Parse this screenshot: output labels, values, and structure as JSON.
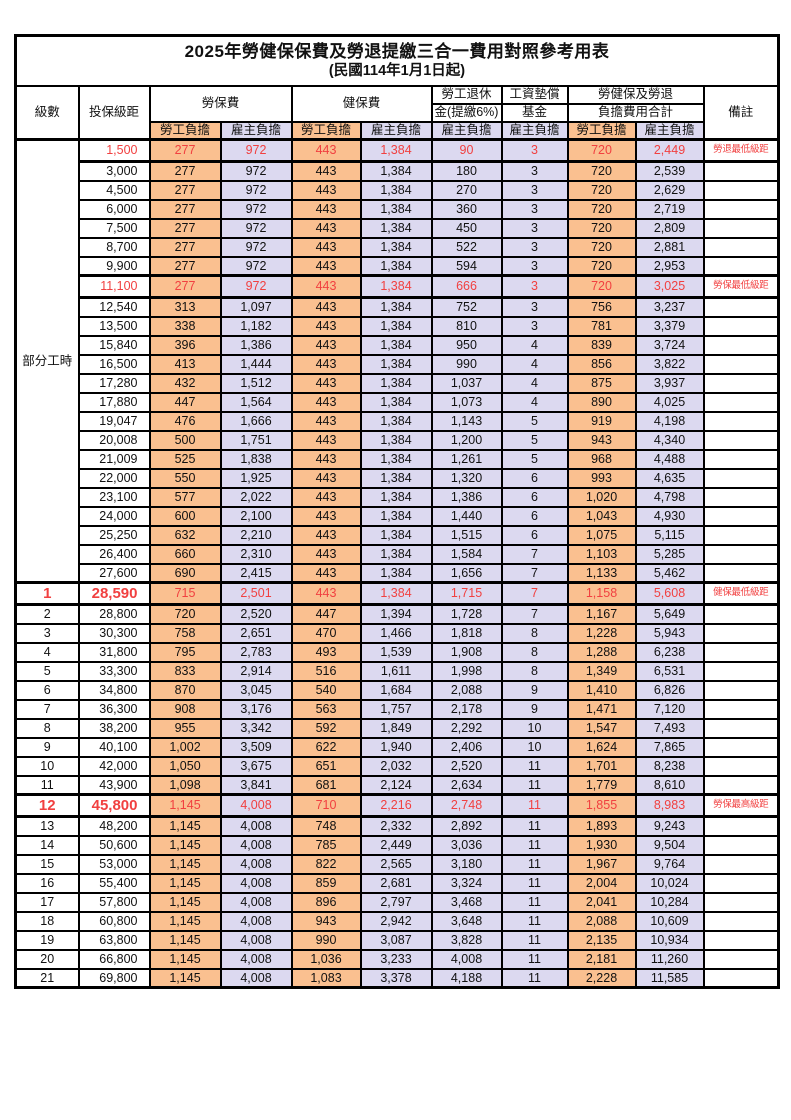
{
  "title": "2025年勞健保保費及勞退提繳三合一費用對照參考用表",
  "subtitle": "(民國114年1月1日起)",
  "colors": {
    "worker_bg": "#FAC090",
    "employer_bg": "#DCD9F0",
    "highlight_red": "#F14040"
  },
  "header": {
    "level": "級數",
    "bracket": "投保級距",
    "labor": "勞保費",
    "health": "健保費",
    "pension1": "勞工退休",
    "pension2": "金(提繳6%)",
    "fund1": "工資墊償",
    "fund2": "基金",
    "total1": "勞健保及勞退",
    "total2": "負擔費用合計",
    "remark": "備註",
    "sub_headers": [
      "勞工負擔",
      "雇主負擔",
      "勞工負擔",
      "雇主負擔",
      "雇主負擔",
      "雇主負擔",
      "勞工負擔",
      "雇主負擔"
    ]
  },
  "part_time": {
    "label": "部分工時",
    "rowspan": 23
  },
  "rows": [
    {
      "lvl": "",
      "amt": "1,500",
      "v": [
        "277",
        "972",
        "443",
        "1,384",
        "90",
        "3",
        "720",
        "2,449"
      ],
      "note": "勞退最低級距",
      "red": true
    },
    {
      "lvl": "",
      "amt": "3,000",
      "v": [
        "277",
        "972",
        "443",
        "1,384",
        "180",
        "3",
        "720",
        "2,539"
      ],
      "note": ""
    },
    {
      "lvl": "",
      "amt": "4,500",
      "v": [
        "277",
        "972",
        "443",
        "1,384",
        "270",
        "3",
        "720",
        "2,629"
      ],
      "note": ""
    },
    {
      "lvl": "",
      "amt": "6,000",
      "v": [
        "277",
        "972",
        "443",
        "1,384",
        "360",
        "3",
        "720",
        "2,719"
      ],
      "note": ""
    },
    {
      "lvl": "",
      "amt": "7,500",
      "v": [
        "277",
        "972",
        "443",
        "1,384",
        "450",
        "3",
        "720",
        "2,809"
      ],
      "note": ""
    },
    {
      "lvl": "",
      "amt": "8,700",
      "v": [
        "277",
        "972",
        "443",
        "1,384",
        "522",
        "3",
        "720",
        "2,881"
      ],
      "note": ""
    },
    {
      "lvl": "",
      "amt": "9,900",
      "v": [
        "277",
        "972",
        "443",
        "1,384",
        "594",
        "3",
        "720",
        "2,953"
      ],
      "note": ""
    },
    {
      "lvl": "",
      "amt": "11,100",
      "v": [
        "277",
        "972",
        "443",
        "1,384",
        "666",
        "3",
        "720",
        "3,025"
      ],
      "note": "勞保最低級距",
      "red": true
    },
    {
      "lvl": "",
      "amt": "12,540",
      "v": [
        "313",
        "1,097",
        "443",
        "1,384",
        "752",
        "3",
        "756",
        "3,237"
      ],
      "note": ""
    },
    {
      "lvl": "",
      "amt": "13,500",
      "v": [
        "338",
        "1,182",
        "443",
        "1,384",
        "810",
        "3",
        "781",
        "3,379"
      ],
      "note": ""
    },
    {
      "lvl": "",
      "amt": "15,840",
      "v": [
        "396",
        "1,386",
        "443",
        "1,384",
        "950",
        "4",
        "839",
        "3,724"
      ],
      "note": ""
    },
    {
      "lvl": "",
      "amt": "16,500",
      "v": [
        "413",
        "1,444",
        "443",
        "1,384",
        "990",
        "4",
        "856",
        "3,822"
      ],
      "note": ""
    },
    {
      "lvl": "",
      "amt": "17,280",
      "v": [
        "432",
        "1,512",
        "443",
        "1,384",
        "1,037",
        "4",
        "875",
        "3,937"
      ],
      "note": ""
    },
    {
      "lvl": "",
      "amt": "17,880",
      "v": [
        "447",
        "1,564",
        "443",
        "1,384",
        "1,073",
        "4",
        "890",
        "4,025"
      ],
      "note": ""
    },
    {
      "lvl": "",
      "amt": "19,047",
      "v": [
        "476",
        "1,666",
        "443",
        "1,384",
        "1,143",
        "5",
        "919",
        "4,198"
      ],
      "note": ""
    },
    {
      "lvl": "",
      "amt": "20,008",
      "v": [
        "500",
        "1,751",
        "443",
        "1,384",
        "1,200",
        "5",
        "943",
        "4,340"
      ],
      "note": ""
    },
    {
      "lvl": "",
      "amt": "21,009",
      "v": [
        "525",
        "1,838",
        "443",
        "1,384",
        "1,261",
        "5",
        "968",
        "4,488"
      ],
      "note": ""
    },
    {
      "lvl": "",
      "amt": "22,000",
      "v": [
        "550",
        "1,925",
        "443",
        "1,384",
        "1,320",
        "6",
        "993",
        "4,635"
      ],
      "note": ""
    },
    {
      "lvl": "",
      "amt": "23,100",
      "v": [
        "577",
        "2,022",
        "443",
        "1,384",
        "1,386",
        "6",
        "1,020",
        "4,798"
      ],
      "note": ""
    },
    {
      "lvl": "",
      "amt": "24,000",
      "v": [
        "600",
        "2,100",
        "443",
        "1,384",
        "1,440",
        "6",
        "1,043",
        "4,930"
      ],
      "note": ""
    },
    {
      "lvl": "",
      "amt": "25,250",
      "v": [
        "632",
        "2,210",
        "443",
        "1,384",
        "1,515",
        "6",
        "1,075",
        "5,115"
      ],
      "note": ""
    },
    {
      "lvl": "",
      "amt": "26,400",
      "v": [
        "660",
        "2,310",
        "443",
        "1,384",
        "1,584",
        "7",
        "1,103",
        "5,285"
      ],
      "note": ""
    },
    {
      "lvl": "",
      "amt": "27,600",
      "v": [
        "690",
        "2,415",
        "443",
        "1,384",
        "1,656",
        "7",
        "1,133",
        "5,462"
      ],
      "note": ""
    },
    {
      "lvl": "1",
      "amt": "28,590",
      "v": [
        "715",
        "2,501",
        "443",
        "1,384",
        "1,715",
        "7",
        "1,158",
        "5,608"
      ],
      "note": "健保最低級距",
      "red": true,
      "big": true
    },
    {
      "lvl": "2",
      "amt": "28,800",
      "v": [
        "720",
        "2,520",
        "447",
        "1,394",
        "1,728",
        "7",
        "1,167",
        "5,649"
      ],
      "note": ""
    },
    {
      "lvl": "3",
      "amt": "30,300",
      "v": [
        "758",
        "2,651",
        "470",
        "1,466",
        "1,818",
        "8",
        "1,228",
        "5,943"
      ],
      "note": ""
    },
    {
      "lvl": "4",
      "amt": "31,800",
      "v": [
        "795",
        "2,783",
        "493",
        "1,539",
        "1,908",
        "8",
        "1,288",
        "6,238"
      ],
      "note": ""
    },
    {
      "lvl": "5",
      "amt": "33,300",
      "v": [
        "833",
        "2,914",
        "516",
        "1,611",
        "1,998",
        "8",
        "1,349",
        "6,531"
      ],
      "note": ""
    },
    {
      "lvl": "6",
      "amt": "34,800",
      "v": [
        "870",
        "3,045",
        "540",
        "1,684",
        "2,088",
        "9",
        "1,410",
        "6,826"
      ],
      "note": ""
    },
    {
      "lvl": "7",
      "amt": "36,300",
      "v": [
        "908",
        "3,176",
        "563",
        "1,757",
        "2,178",
        "9",
        "1,471",
        "7,120"
      ],
      "note": ""
    },
    {
      "lvl": "8",
      "amt": "38,200",
      "v": [
        "955",
        "3,342",
        "592",
        "1,849",
        "2,292",
        "10",
        "1,547",
        "7,493"
      ],
      "note": ""
    },
    {
      "lvl": "9",
      "amt": "40,100",
      "v": [
        "1,002",
        "3,509",
        "622",
        "1,940",
        "2,406",
        "10",
        "1,624",
        "7,865"
      ],
      "note": ""
    },
    {
      "lvl": "10",
      "amt": "42,000",
      "v": [
        "1,050",
        "3,675",
        "651",
        "2,032",
        "2,520",
        "11",
        "1,701",
        "8,238"
      ],
      "note": ""
    },
    {
      "lvl": "11",
      "amt": "43,900",
      "v": [
        "1,098",
        "3,841",
        "681",
        "2,124",
        "2,634",
        "11",
        "1,779",
        "8,610"
      ],
      "note": ""
    },
    {
      "lvl": "12",
      "amt": "45,800",
      "v": [
        "1,145",
        "4,008",
        "710",
        "2,216",
        "2,748",
        "11",
        "1,855",
        "8,983"
      ],
      "note": "勞保最高級距",
      "red": true,
      "big": true
    },
    {
      "lvl": "13",
      "amt": "48,200",
      "v": [
        "1,145",
        "4,008",
        "748",
        "2,332",
        "2,892",
        "11",
        "1,893",
        "9,243"
      ],
      "note": ""
    },
    {
      "lvl": "14",
      "amt": "50,600",
      "v": [
        "1,145",
        "4,008",
        "785",
        "2,449",
        "3,036",
        "11",
        "1,930",
        "9,504"
      ],
      "note": ""
    },
    {
      "lvl": "15",
      "amt": "53,000",
      "v": [
        "1,145",
        "4,008",
        "822",
        "2,565",
        "3,180",
        "11",
        "1,967",
        "9,764"
      ],
      "note": ""
    },
    {
      "lvl": "16",
      "amt": "55,400",
      "v": [
        "1,145",
        "4,008",
        "859",
        "2,681",
        "3,324",
        "11",
        "2,004",
        "10,024"
      ],
      "note": ""
    },
    {
      "lvl": "17",
      "amt": "57,800",
      "v": [
        "1,145",
        "4,008",
        "896",
        "2,797",
        "3,468",
        "11",
        "2,041",
        "10,284"
      ],
      "note": ""
    },
    {
      "lvl": "18",
      "amt": "60,800",
      "v": [
        "1,145",
        "4,008",
        "943",
        "2,942",
        "3,648",
        "11",
        "2,088",
        "10,609"
      ],
      "note": ""
    },
    {
      "lvl": "19",
      "amt": "63,800",
      "v": [
        "1,145",
        "4,008",
        "990",
        "3,087",
        "3,828",
        "11",
        "2,135",
        "10,934"
      ],
      "note": ""
    },
    {
      "lvl": "20",
      "amt": "66,800",
      "v": [
        "1,145",
        "4,008",
        "1,036",
        "3,233",
        "4,008",
        "11",
        "2,181",
        "11,260"
      ],
      "note": ""
    },
    {
      "lvl": "21",
      "amt": "69,800",
      "v": [
        "1,145",
        "4,008",
        "1,083",
        "3,378",
        "4,188",
        "11",
        "2,228",
        "11,585"
      ],
      "note": ""
    }
  ]
}
